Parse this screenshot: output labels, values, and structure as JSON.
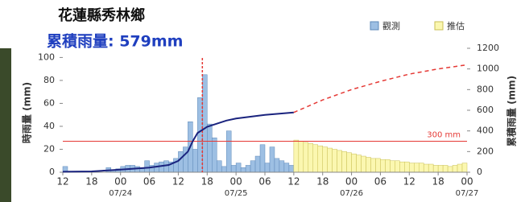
{
  "chart_data": {
    "type": "bar",
    "title": "花蓮縣秀林鄉",
    "subtitle": "累積雨量: 579mm",
    "ylabel": "時雨量 (mm)",
    "y2label": "累積雨量 (mm)",
    "x": [
      12,
      13,
      14,
      15,
      16,
      17,
      18,
      19,
      20,
      21,
      22,
      23,
      24,
      25,
      26,
      27,
      28,
      29,
      30,
      31,
      32,
      33,
      34,
      35,
      36,
      37,
      38,
      39,
      40,
      41,
      42,
      43,
      44,
      45,
      46,
      47,
      48,
      49,
      50,
      51,
      52,
      53,
      54,
      55,
      56,
      57,
      58,
      59,
      60,
      61,
      62,
      63,
      64,
      65,
      66,
      67,
      68,
      69,
      70,
      71,
      72,
      73,
      74,
      75,
      76,
      77,
      78,
      79,
      80,
      81,
      82,
      83,
      84,
      85,
      86,
      87,
      88,
      89,
      90,
      91,
      92,
      93,
      94,
      95
    ],
    "series": [
      {
        "name": "觀測",
        "color": "#9dbfe3",
        "values": [
          5,
          0,
          0,
          0,
          0,
          0,
          0,
          0,
          0,
          4,
          2,
          3,
          5,
          6,
          6,
          5,
          3,
          10,
          6,
          8,
          9,
          10,
          9,
          12,
          18,
          22,
          44,
          20,
          65,
          85,
          42,
          30,
          10,
          5,
          36,
          6,
          8,
          4,
          6,
          10,
          14,
          24,
          8,
          22,
          12,
          10,
          8,
          6,
          null,
          null,
          null,
          null,
          null,
          null,
          null,
          null,
          null,
          null,
          null,
          null,
          null,
          null,
          null,
          null,
          null,
          null,
          null,
          null,
          null,
          null,
          null,
          null,
          null,
          null,
          null,
          null,
          null,
          null,
          null,
          null,
          null,
          null,
          null,
          null
        ]
      },
      {
        "name": "推估",
        "color": "#fbf7b0",
        "values": [
          null,
          null,
          null,
          null,
          null,
          null,
          null,
          null,
          null,
          null,
          null,
          null,
          null,
          null,
          null,
          null,
          null,
          null,
          null,
          null,
          null,
          null,
          null,
          null,
          null,
          null,
          null,
          null,
          null,
          null,
          null,
          null,
          null,
          null,
          null,
          null,
          null,
          null,
          null,
          null,
          null,
          null,
          null,
          null,
          null,
          null,
          null,
          null,
          28,
          27,
          26,
          25,
          24,
          23,
          22,
          21,
          20,
          19,
          18,
          17,
          16,
          15,
          14,
          13,
          12,
          12,
          11,
          11,
          10,
          10,
          9,
          9,
          8,
          8,
          8,
          7,
          7,
          6,
          6,
          6,
          5,
          6,
          7,
          8
        ]
      }
    ],
    "lines": [
      {
        "color": "#1a237e",
        "dashed": false,
        "axis": "y2",
        "x": [
          12,
          18,
          24,
          30,
          34,
          36,
          38,
          39,
          40,
          42,
          44,
          46,
          48,
          54,
          60
        ],
        "values": [
          5,
          8,
          25,
          45,
          70,
          110,
          200,
          300,
          380,
          440,
          470,
          500,
          520,
          555,
          579
        ]
      },
      {
        "color": "#e53935",
        "dashed": true,
        "axis": "y2",
        "x": [
          60,
          66,
          72,
          78,
          84,
          90,
          96
        ],
        "values": [
          579,
          700,
          800,
          880,
          950,
          1000,
          1040
        ]
      }
    ],
    "threshold": {
      "value": 300,
      "label": "300 mm",
      "axis": "y2",
      "color": "#e53935"
    },
    "peak_marker_x": 41,
    "xlim": [
      12,
      96
    ],
    "xticks": [
      {
        "value": 12,
        "label": "12"
      },
      {
        "value": 18,
        "label": "18"
      },
      {
        "value": 24,
        "label": "00"
      },
      {
        "value": 30,
        "label": "06"
      },
      {
        "value": 36,
        "label": "12"
      },
      {
        "value": 42,
        "label": "18"
      },
      {
        "value": 48,
        "label": "00"
      },
      {
        "value": 54,
        "label": "06"
      },
      {
        "value": 60,
        "label": "12"
      },
      {
        "value": 66,
        "label": "18"
      },
      {
        "value": 72,
        "label": "00"
      },
      {
        "value": 78,
        "label": "06"
      },
      {
        "value": 84,
        "label": "12"
      },
      {
        "value": 90,
        "label": "18"
      },
      {
        "value": 96,
        "label": "00"
      }
    ],
    "date_labels": [
      {
        "value": 24,
        "label": "07/24"
      },
      {
        "value": 48,
        "label": "07/25"
      },
      {
        "value": 72,
        "label": "07/26"
      },
      {
        "value": 96,
        "label": "07/27"
      }
    ],
    "ylim": [
      0,
      108
    ],
    "yticks": [
      0,
      20,
      40,
      60,
      80,
      100
    ],
    "y2lim": [
      0,
      1200
    ],
    "y2ticks": [
      0,
      200,
      400,
      600,
      800,
      1000,
      1200
    ]
  }
}
